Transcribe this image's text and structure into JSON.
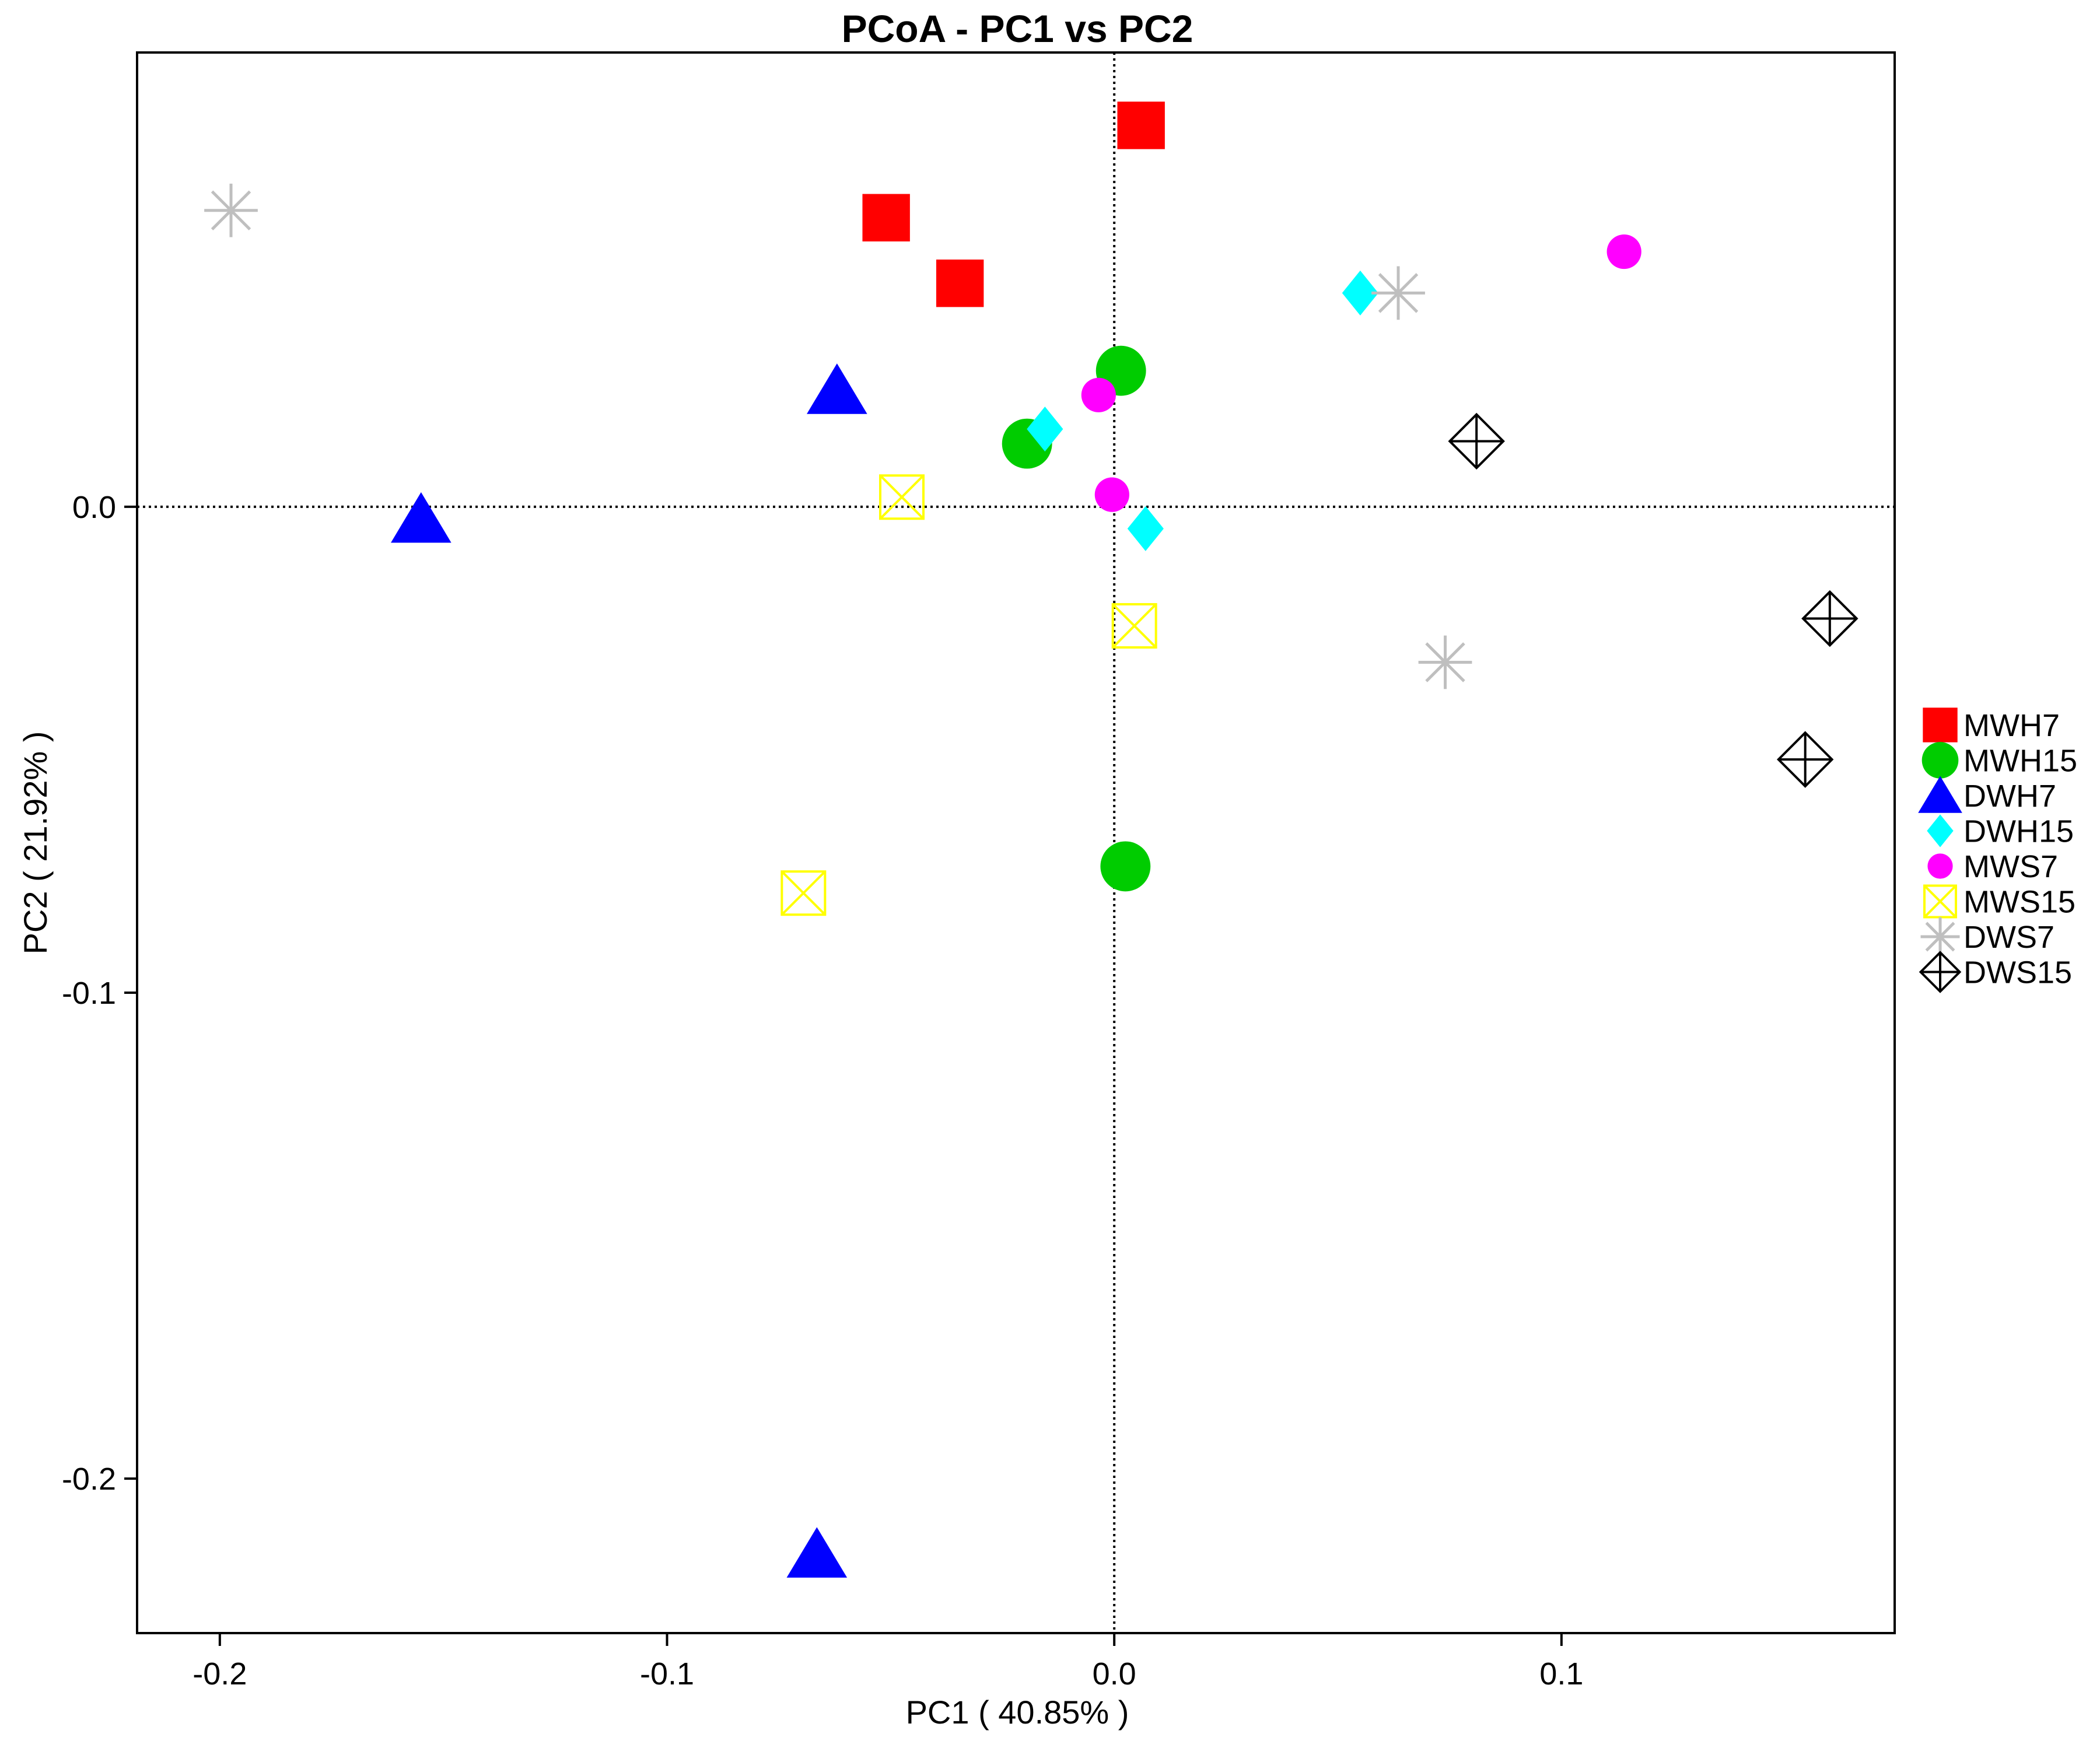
{
  "chart_data": {
    "type": "scatter",
    "title": "PCoA - PC1 vs PC2",
    "xlabel": "PC1 ( 40.85% )",
    "ylabel": "PC2 ( 21.92% )",
    "xlim": [
      -0.2185,
      0.1745
    ],
    "ylim": [
      -0.2318,
      0.0935
    ],
    "x_ticks": [
      -0.2,
      -0.1,
      0.0,
      0.1
    ],
    "x_tick_labels": [
      "-0.2",
      "-0.1",
      "0.0",
      "0.1"
    ],
    "y_ticks": [
      -0.2,
      -0.1,
      0.0
    ],
    "y_tick_labels": [
      "-0.2",
      "-0.1",
      "0.0"
    ],
    "reference_lines": {
      "x": 0,
      "y": 0,
      "style": "dotted"
    },
    "grid": false,
    "legend_position": "right",
    "series": [
      {
        "name": "MWH7",
        "marker": "filled-square",
        "color": "#ff0000",
        "points": [
          [
            0.006,
            0.0785
          ],
          [
            -0.051,
            0.0595
          ],
          [
            -0.0345,
            0.046
          ]
        ]
      },
      {
        "name": "MWH15",
        "marker": "filled-circle",
        "color": "#00cc00",
        "points": [
          [
            0.0015,
            0.028
          ],
          [
            -0.0195,
            0.013
          ],
          [
            0.0025,
            -0.074
          ]
        ]
      },
      {
        "name": "DWH7",
        "marker": "filled-triangle",
        "color": "#0000ff",
        "points": [
          [
            -0.062,
            0.024
          ],
          [
            -0.155,
            -0.0025
          ],
          [
            -0.0665,
            -0.2155
          ]
        ]
      },
      {
        "name": "DWH15",
        "marker": "filled-diamond",
        "color": "#00ffff",
        "points": [
          [
            0.055,
            0.044
          ],
          [
            -0.0155,
            0.016
          ],
          [
            0.007,
            -0.0045
          ]
        ]
      },
      {
        "name": "MWS7",
        "marker": "small-circle",
        "color": "#ff00ff",
        "points": [
          [
            0.114,
            0.0525
          ],
          [
            -0.0035,
            0.023
          ],
          [
            -0.0005,
            0.0025
          ]
        ]
      },
      {
        "name": "MWS15",
        "marker": "boxed-x",
        "color": "#ffff00",
        "points": [
          [
            -0.0475,
            0.002
          ],
          [
            0.0045,
            -0.0245
          ],
          [
            -0.0695,
            -0.0795
          ]
        ]
      },
      {
        "name": "DWS7",
        "marker": "asterisk",
        "color": "#bfbfbf",
        "points": [
          [
            -0.1975,
            0.061
          ],
          [
            0.0635,
            0.044
          ],
          [
            0.074,
            -0.032
          ]
        ]
      },
      {
        "name": "DWS15",
        "marker": "diamond-plus",
        "color": "#000000",
        "points": [
          [
            0.081,
            0.0135
          ],
          [
            0.16,
            -0.023
          ],
          [
            0.1545,
            -0.052
          ]
        ]
      }
    ]
  }
}
